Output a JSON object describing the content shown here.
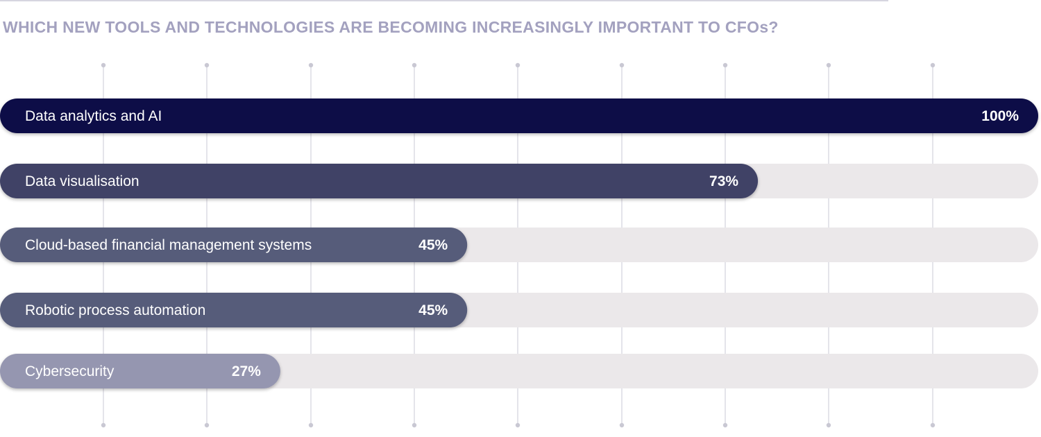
{
  "chart_data": {
    "type": "bar",
    "orientation": "horizontal",
    "title": "WHICH NEW TOOLS AND TECHNOLOGIES ARE BECOMING INCREASINGLY IMPORTANT TO CFOs?",
    "xlim": [
      0,
      100
    ],
    "grid": true,
    "categories": [
      "Data analytics and AI",
      "Data visualisation",
      "Cloud-based financial management systems",
      "Robotic process automation",
      "Cybersecurity"
    ],
    "values": [
      100,
      73,
      45,
      45,
      27
    ],
    "value_labels": [
      "100%",
      "73%",
      "45%",
      "45%",
      "27%"
    ],
    "bar_colors": [
      "#0e0d47",
      "#3f4266",
      "#575c7a",
      "#575c7a",
      "#9596b0"
    ],
    "track_color": "#ebe8ea",
    "grid_color": "#dcdbe3",
    "text_color": "#ffffff"
  }
}
